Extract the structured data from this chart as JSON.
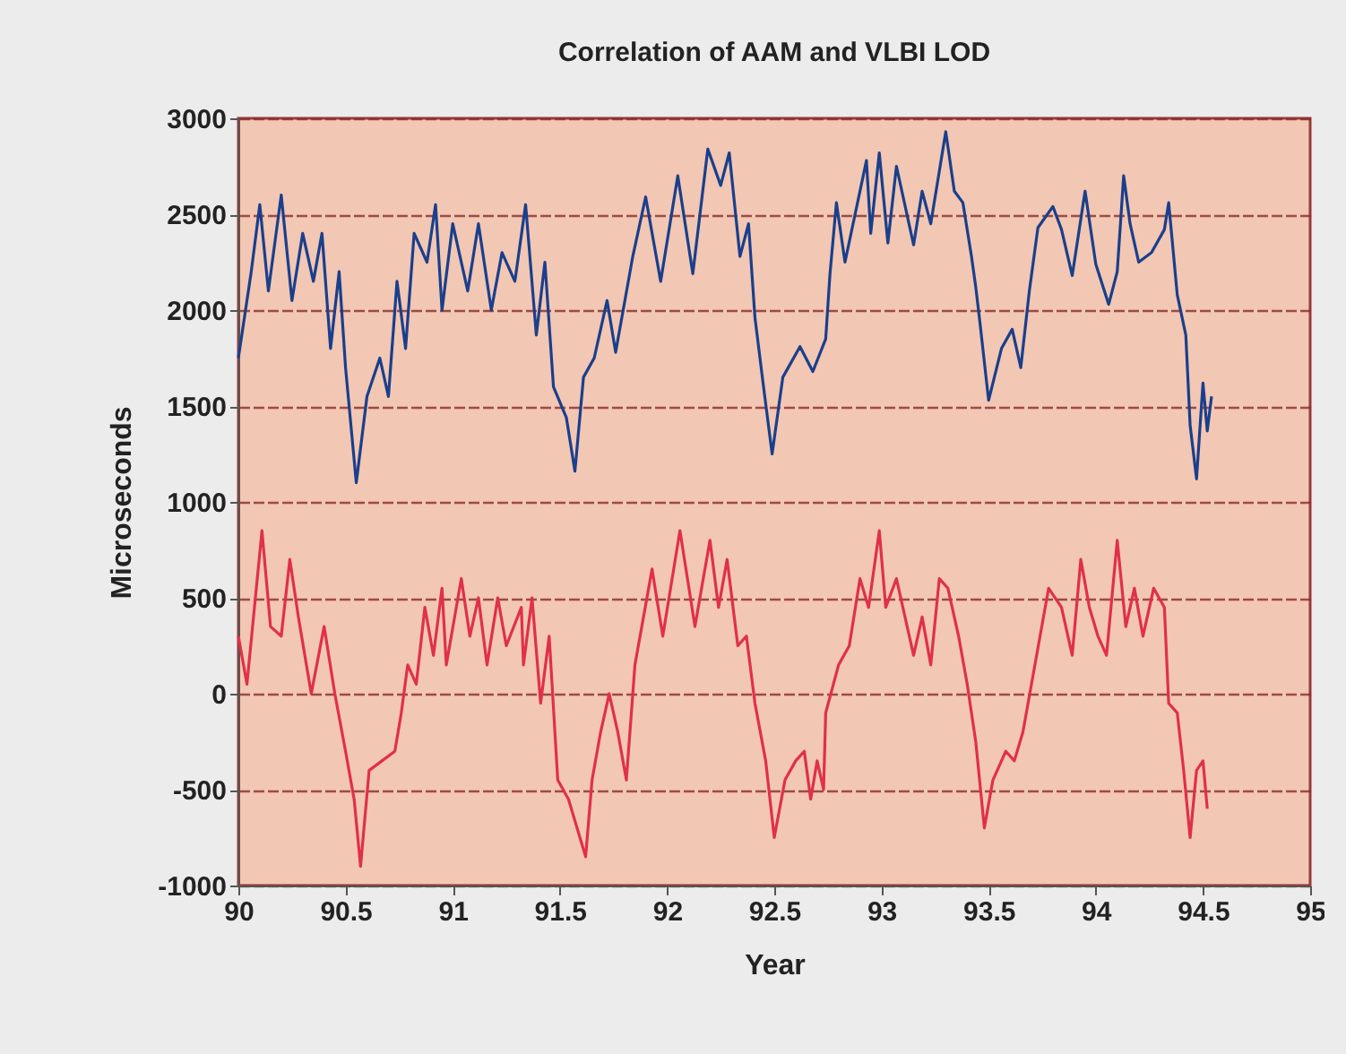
{
  "chart_data": {
    "type": "line",
    "title": "Correlation of AAM and VLBI LOD",
    "xlabel": "Year",
    "ylabel": "Microseconds",
    "xlim": [
      90,
      95
    ],
    "xticks": [
      90,
      90.5,
      91,
      91.5,
      92,
      92.5,
      93,
      93.5,
      94,
      94.5,
      95
    ],
    "ylim": [
      -1000,
      3000
    ],
    "yticks": [
      -1000,
      -500,
      0,
      500,
      1000,
      1500,
      2000,
      2500,
      3000
    ],
    "grid": "y",
    "legend": false,
    "series": [
      {
        "color": "#1a3f8c",
        "x": [
          90.0,
          90.06,
          90.1,
          90.14,
          90.2,
          90.25,
          90.3,
          90.35,
          90.39,
          90.43,
          90.47,
          90.5,
          90.55,
          90.6,
          90.66,
          90.7,
          90.74,
          90.78,
          90.82,
          90.88,
          90.92,
          90.95,
          91.0,
          91.07,
          91.12,
          91.18,
          91.23,
          91.29,
          91.34,
          91.39,
          91.43,
          91.47,
          91.53,
          91.57,
          91.61,
          91.66,
          91.72,
          91.76,
          91.84,
          91.9,
          91.97,
          92.05,
          92.12,
          92.19,
          92.25,
          92.29,
          92.34,
          92.38,
          92.41,
          92.45,
          92.49,
          92.54,
          92.62,
          92.68,
          92.74,
          92.76,
          92.79,
          92.83,
          92.93,
          92.95,
          92.99,
          93.03,
          93.07,
          93.15,
          93.19,
          93.23,
          93.3,
          93.34,
          93.38,
          93.42,
          93.44,
          93.46,
          93.5,
          93.56,
          93.61,
          93.65,
          93.69,
          93.73,
          93.8,
          93.84,
          93.89,
          93.95,
          94.0,
          94.06,
          94.1,
          94.13,
          94.16,
          94.2,
          94.26,
          94.32,
          94.34,
          94.38,
          94.42,
          94.44,
          94.47,
          94.5,
          94.52,
          94.54
        ],
        "values": [
          1750,
          2200,
          2550,
          2100,
          2600,
          2050,
          2400,
          2150,
          2400,
          1800,
          2200,
          1700,
          1100,
          1550,
          1750,
          1550,
          2150,
          1800,
          2400,
          2250,
          2550,
          2000,
          2450,
          2100,
          2450,
          2000,
          2300,
          2150,
          2550,
          1870,
          2250,
          1600,
          1440,
          1160,
          1650,
          1750,
          2050,
          1780,
          2280,
          2590,
          2150,
          2700,
          2190,
          2840,
          2650,
          2820,
          2280,
          2450,
          1960,
          1600,
          1250,
          1650,
          1810,
          1680,
          1850,
          2190,
          2560,
          2250,
          2780,
          2400,
          2820,
          2350,
          2750,
          2340,
          2620,
          2450,
          2930,
          2620,
          2560,
          2280,
          2120,
          1930,
          1530,
          1800,
          1900,
          1700,
          2100,
          2430,
          2540,
          2420,
          2180,
          2620,
          2240,
          2030,
          2200,
          2700,
          2450,
          2250,
          2300,
          2420,
          2560,
          2080,
          1870,
          1400,
          1120,
          1620,
          1370,
          1550
        ]
      },
      {
        "color": "#e0304a",
        "x": [
          90.0,
          90.04,
          90.11,
          90.15,
          90.2,
          90.24,
          90.28,
          90.34,
          90.4,
          90.45,
          90.5,
          90.54,
          90.57,
          90.61,
          90.67,
          90.73,
          90.76,
          90.79,
          90.83,
          90.87,
          90.91,
          90.95,
          90.97,
          91.04,
          91.08,
          91.12,
          91.16,
          91.21,
          91.25,
          91.32,
          91.33,
          91.37,
          91.41,
          91.45,
          91.49,
          91.54,
          91.58,
          91.62,
          91.65,
          91.69,
          91.73,
          91.77,
          91.81,
          91.85,
          91.93,
          91.98,
          92.06,
          92.13,
          92.2,
          92.24,
          92.28,
          92.33,
          92.37,
          92.41,
          92.46,
          92.5,
          92.55,
          92.6,
          92.64,
          92.67,
          92.7,
          92.73,
          92.74,
          92.8,
          92.85,
          92.9,
          92.94,
          92.99,
          93.02,
          93.07,
          93.11,
          93.15,
          93.19,
          93.23,
          93.27,
          93.31,
          93.36,
          93.4,
          93.44,
          93.48,
          93.52,
          93.58,
          93.62,
          93.66,
          93.7,
          93.74,
          93.78,
          93.84,
          93.89,
          93.93,
          93.97,
          94.01,
          94.05,
          94.1,
          94.14,
          94.18,
          94.22,
          94.27,
          94.32,
          94.34,
          94.38,
          94.41,
          94.44,
          94.47,
          94.5,
          94.52
        ],
        "values": [
          300,
          50,
          850,
          350,
          300,
          700,
          400,
          0,
          350,
          0,
          -300,
          -550,
          -900,
          -400,
          -350,
          -300,
          -100,
          150,
          50,
          450,
          200,
          550,
          150,
          600,
          300,
          500,
          150,
          500,
          250,
          450,
          150,
          500,
          -50,
          300,
          -450,
          -550,
          -700,
          -850,
          -450,
          -200,
          0,
          -200,
          -450,
          150,
          650,
          300,
          850,
          350,
          800,
          450,
          700,
          250,
          300,
          -50,
          -350,
          -750,
          -450,
          -350,
          -300,
          -550,
          -350,
          -500,
          -100,
          150,
          250,
          600,
          450,
          850,
          450,
          600,
          400,
          200,
          400,
          150,
          600,
          550,
          300,
          50,
          -250,
          -700,
          -450,
          -300,
          -350,
          -200,
          50,
          300,
          550,
          450,
          200,
          700,
          450,
          300,
          200,
          800,
          350,
          550,
          300,
          550,
          450,
          -50,
          -100,
          -400,
          -750,
          -400,
          -350,
          -600
        ]
      }
    ]
  }
}
